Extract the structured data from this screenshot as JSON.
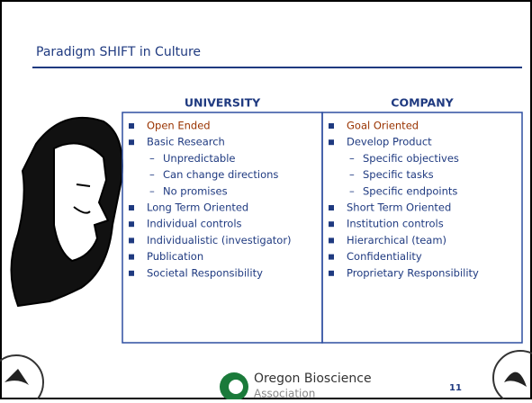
{
  "slide": {
    "title": "Paradigm SHIFT in Culture",
    "columns": [
      {
        "heading": "UNIVERSITY",
        "items": [
          {
            "text": "Open Ended"
          },
          {
            "text": "Basic Research",
            "subitems": [
              "Unpredictable",
              "Can change directions",
              "No promises"
            ]
          },
          {
            "text": "Long Term Oriented"
          },
          {
            "text": "Individual controls"
          },
          {
            "text": "Individualistic (investigator)"
          },
          {
            "text": "Publication"
          },
          {
            "text": "Societal Responsibility"
          }
        ]
      },
      {
        "heading": "COMPANY",
        "items": [
          {
            "text": "Goal Oriented"
          },
          {
            "text": "Develop Product",
            "subitems": [
              "Specific objectives",
              "Specific tasks",
              "Specific endpoints"
            ]
          },
          {
            "text": "Short Term Oriented"
          },
          {
            "text": "Institution controls"
          },
          {
            "text": "Hierarchical (team)"
          },
          {
            "text": "Confidentiality"
          },
          {
            "text": "Proprietary Responsibility"
          }
        ]
      }
    ],
    "footer": {
      "org_name": "Oregon Bioscience",
      "org_sub": "Association",
      "page_number": "11"
    }
  }
}
